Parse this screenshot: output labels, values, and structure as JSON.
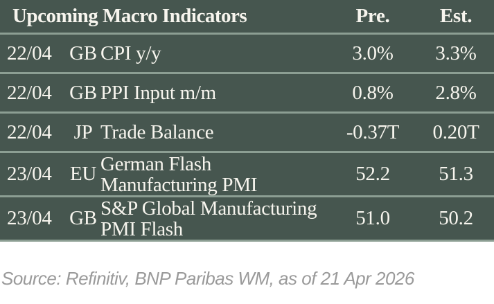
{
  "table": {
    "title": "Upcoming Macro Indicators",
    "columns": {
      "pre": "Pre.",
      "est": "Est."
    },
    "rows": [
      {
        "date": "22/04",
        "country": "GB",
        "indicator": "CPI y/y",
        "pre": "3.0%",
        "est": "3.3%"
      },
      {
        "date": "22/04",
        "country": "GB",
        "indicator": "PPI Input m/m",
        "pre": "0.8%",
        "est": "2.8%"
      },
      {
        "date": "22/04",
        "country": "JP",
        "indicator": "Trade Balance",
        "pre": "-0.37T",
        "est": "0.20T"
      },
      {
        "date": "23/04",
        "country": "EU",
        "indicator": "German Flash\nManufacturing PMI",
        "pre": "52.2",
        "est": "51.3"
      },
      {
        "date": "23/04",
        "country": "GB",
        "indicator": "S&P Global Manufacturing\nPMI Flash",
        "pre": "51.0",
        "est": "50.2"
      }
    ]
  },
  "source": "Source: Refinitiv, BNP Paribas WM, as of 21 Apr 2026",
  "colors": {
    "table_bg": "#46564F",
    "divider": "#8C9E93",
    "table_text": "#F7F5EE",
    "source_text": "#9A9A9A",
    "page_bg": "#FFFFFF"
  }
}
